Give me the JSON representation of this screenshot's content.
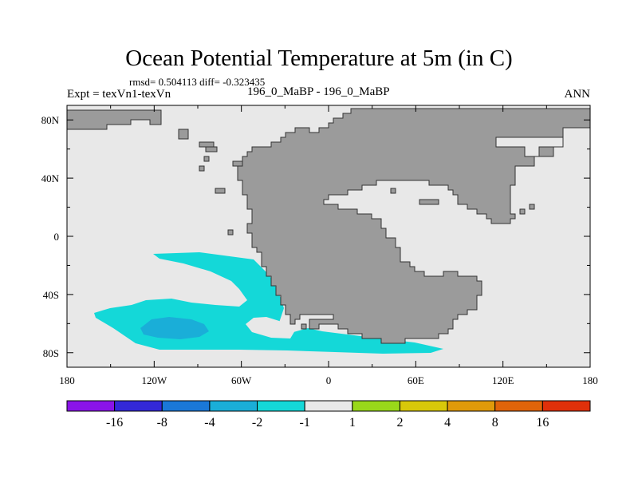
{
  "chart_data": {
    "type": "heatmap",
    "title": "Ocean Potential Temperature at 5m (in C)",
    "rmsd_label": "rmsd= 0.504113 diff= -0.323435",
    "left_label": "Expt = texVn1-texVn",
    "center_label": "196_0_MaBP - 196_0_MaBP",
    "right_label": "ANN",
    "x_tick_labels": [
      "180",
      "120W",
      "60W",
      "0",
      "60E",
      "120E",
      "180"
    ],
    "x_tick_values": [
      -180,
      -120,
      -60,
      0,
      60,
      120,
      180
    ],
    "y_tick_labels": [
      "80N",
      "40N",
      "0",
      "40S",
      "80S"
    ],
    "y_tick_values": [
      80,
      40,
      0,
      -40,
      -80
    ],
    "xlim": [
      -180,
      180
    ],
    "ylim": [
      -90,
      90
    ],
    "colorbar": {
      "levels": [
        "-16",
        "-8",
        "-4",
        "-2",
        "-1",
        "1",
        "2",
        "4",
        "8",
        "16"
      ],
      "colors": [
        "#8a13e8",
        "#3328d8",
        "#1a78d8",
        "#1aaed8",
        "#14d8d8",
        "#e8e8e8",
        "#99d81a",
        "#d8c80a",
        "#e09a0a",
        "#e0640a",
        "#e0300a"
      ]
    },
    "field_description": "Anomaly near zero (-1 to 1) almost everywhere; -1 to -2 band over southern Pacific ocean, core -2 to -4 near 110W 65S",
    "colors": {
      "land": "#9b9b9b",
      "ocean_near_zero": "#e8e8e8",
      "anom_m1_m2": "#14d8d8",
      "anom_m2_m4": "#1aaed8"
    }
  }
}
